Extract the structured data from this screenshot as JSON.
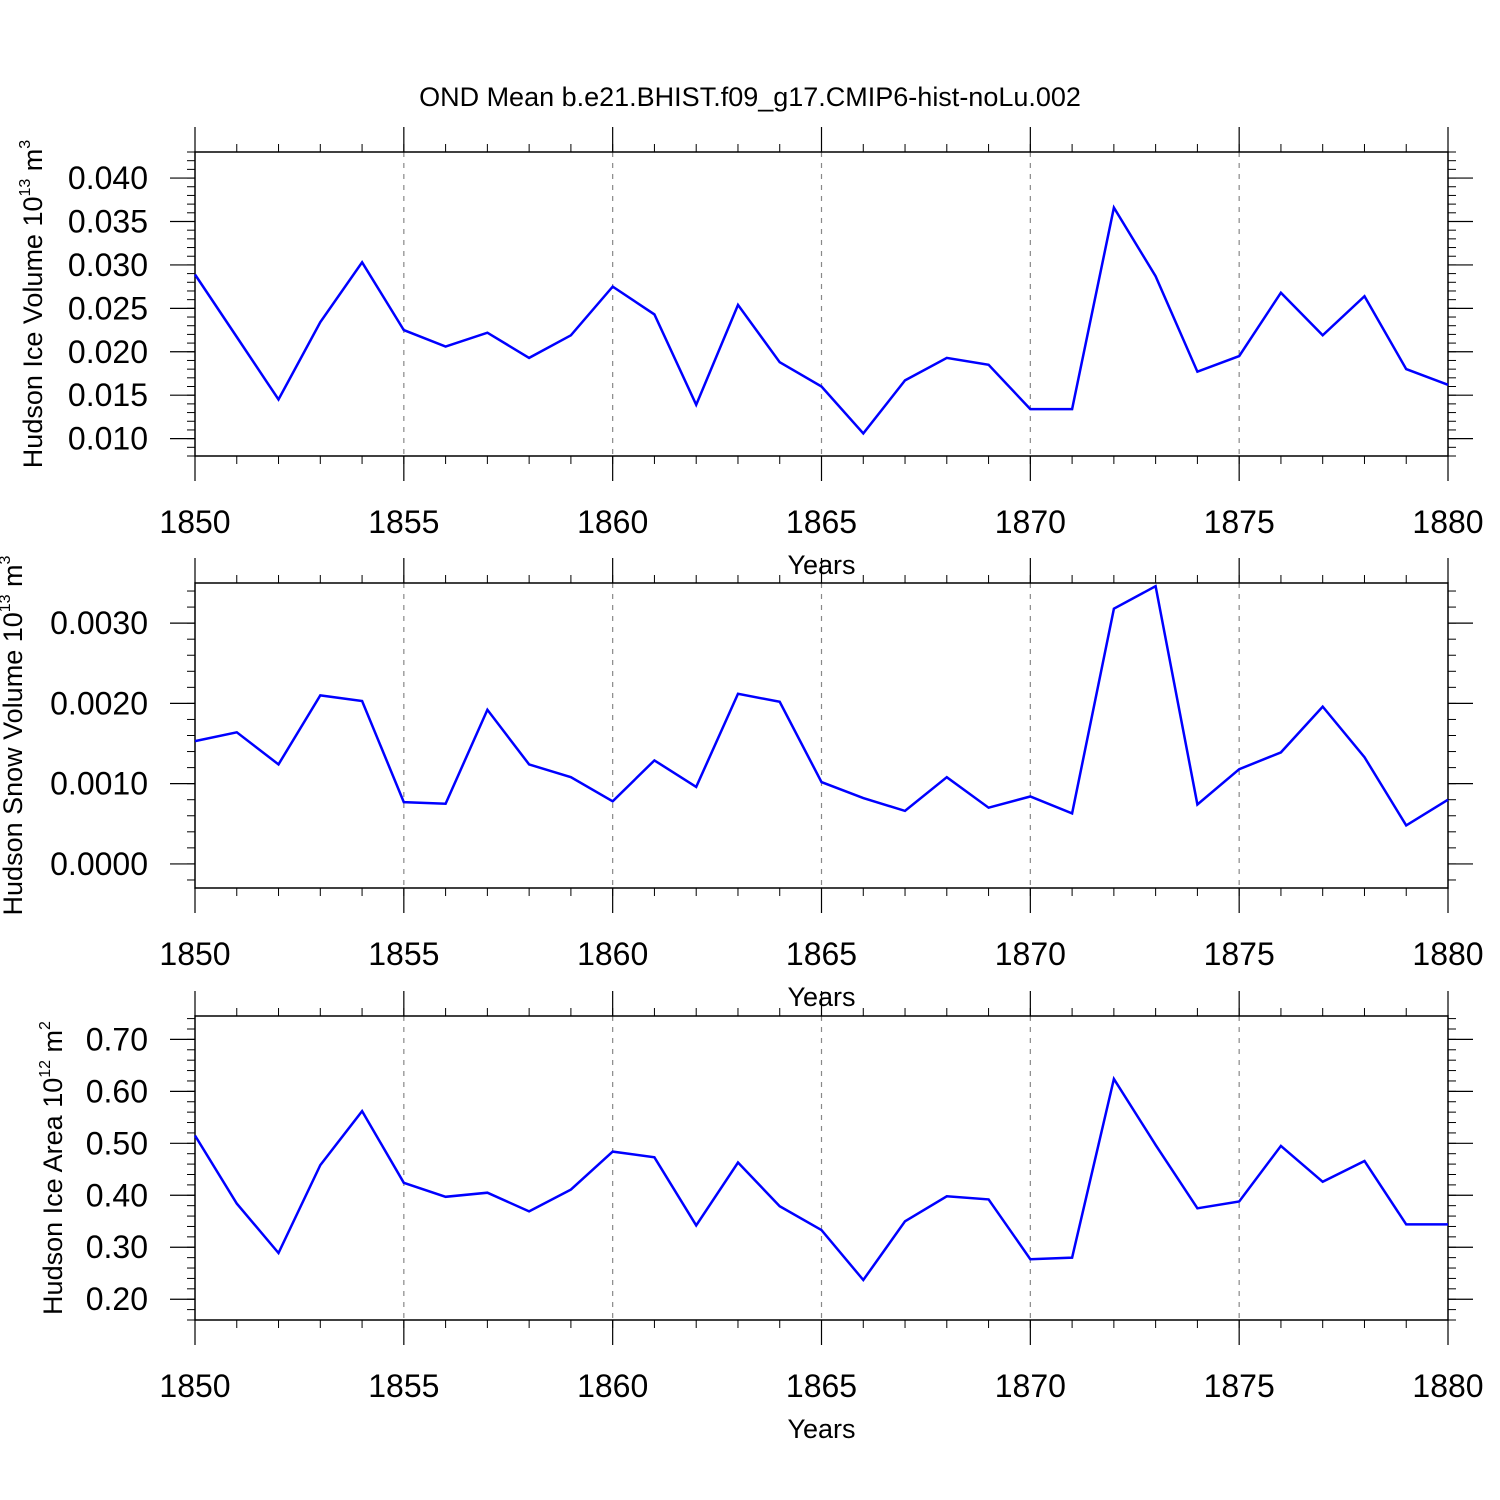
{
  "title": "OND Mean b.e21.BHIST.f09_g17.CMIP6-hist-noLu.002",
  "chart_data": [
    {
      "type": "line",
      "ylabel": {
        "main": "Hudson Ice Volume 10",
        "exp": "13",
        "unit": " m",
        "unit_exp": "3"
      },
      "xlabel": "Years",
      "xlim": [
        1850,
        1880
      ],
      "ylim": [
        0.008,
        0.043
      ],
      "x_ticks": [
        "1850",
        "1855",
        "1860",
        "1865",
        "1870",
        "1875",
        "1880"
      ],
      "y_ticks": [
        "0.010",
        "0.015",
        "0.020",
        "0.025",
        "0.030",
        "0.035",
        "0.040"
      ],
      "grid": "vertical-dashed",
      "line_color": "#0000ff",
      "series": [
        {
          "x": [
            1850,
            1851,
            1852,
            1853,
            1854,
            1855,
            1856,
            1857,
            1858,
            1859,
            1860,
            1861,
            1862,
            1863,
            1864,
            1865,
            1866,
            1867,
            1868,
            1869,
            1870,
            1871,
            1872,
            1873,
            1874,
            1875,
            1876,
            1877,
            1878,
            1879,
            1880
          ],
          "values": [
            0.0289,
            0.0217,
            0.0145,
            0.0234,
            0.0303,
            0.0225,
            0.0206,
            0.0222,
            0.0193,
            0.0219,
            0.0275,
            0.0243,
            0.0139,
            0.0254,
            0.0188,
            0.016,
            0.0106,
            0.0167,
            0.0193,
            0.0185,
            0.0134,
            0.0134,
            0.0366,
            0.0287,
            0.0177,
            0.0195,
            0.0268,
            0.0219,
            0.0264,
            0.018,
            0.0162
          ]
        }
      ]
    },
    {
      "type": "line",
      "ylabel": {
        "main": "Hudson Snow Volume 10",
        "exp": "13",
        "unit": " m",
        "unit_exp": "3"
      },
      "xlabel": "Years",
      "xlim": [
        1850,
        1880
      ],
      "ylim": [
        -0.0003,
        0.0035
      ],
      "x_ticks": [
        "1850",
        "1855",
        "1860",
        "1865",
        "1870",
        "1875",
        "1880"
      ],
      "y_ticks": [
        "0.0000",
        "0.0010",
        "0.0020",
        "0.0030"
      ],
      "grid": "vertical-dashed",
      "line_color": "#0000ff",
      "series": [
        {
          "x": [
            1850,
            1851,
            1852,
            1853,
            1854,
            1855,
            1856,
            1857,
            1858,
            1859,
            1860,
            1861,
            1862,
            1863,
            1864,
            1865,
            1866,
            1867,
            1868,
            1869,
            1870,
            1871,
            1872,
            1873,
            1874,
            1875,
            1876,
            1877,
            1878,
            1879,
            1880
          ],
          "values": [
            0.00153,
            0.00164,
            0.00124,
            0.0021,
            0.00203,
            0.00077,
            0.00075,
            0.00192,
            0.00124,
            0.00108,
            0.00078,
            0.00129,
            0.00096,
            0.00212,
            0.00202,
            0.00102,
            0.00082,
            0.00066,
            0.00108,
            0.0007,
            0.00084,
            0.00063,
            0.00318,
            0.00346,
            0.00074,
            0.00118,
            0.00139,
            0.00196,
            0.00133,
            0.00048,
            0.0008
          ]
        }
      ]
    },
    {
      "type": "line",
      "ylabel": {
        "main": "Hudson Ice Area 10",
        "exp": "12",
        "unit": " m",
        "unit_exp": "2"
      },
      "xlabel": "Years",
      "xlim": [
        1850,
        1880
      ],
      "ylim": [
        0.16,
        0.745
      ],
      "x_ticks": [
        "1850",
        "1855",
        "1860",
        "1865",
        "1870",
        "1875",
        "1880"
      ],
      "y_ticks": [
        "0.20",
        "0.30",
        "0.40",
        "0.50",
        "0.60",
        "0.70"
      ],
      "grid": "vertical-dashed",
      "line_color": "#0000ff",
      "series": [
        {
          "x": [
            1850,
            1851,
            1852,
            1853,
            1854,
            1855,
            1856,
            1857,
            1858,
            1859,
            1860,
            1861,
            1862,
            1863,
            1864,
            1865,
            1866,
            1867,
            1868,
            1869,
            1870,
            1871,
            1872,
            1873,
            1874,
            1875,
            1876,
            1877,
            1878,
            1879,
            1880
          ],
          "values": [
            0.515,
            0.384,
            0.289,
            0.458,
            0.562,
            0.424,
            0.397,
            0.405,
            0.369,
            0.411,
            0.484,
            0.473,
            0.342,
            0.463,
            0.379,
            0.333,
            0.237,
            0.35,
            0.398,
            0.392,
            0.277,
            0.28,
            0.624,
            0.497,
            0.375,
            0.388,
            0.495,
            0.426,
            0.466,
            0.344,
            0.344
          ]
        }
      ]
    }
  ]
}
